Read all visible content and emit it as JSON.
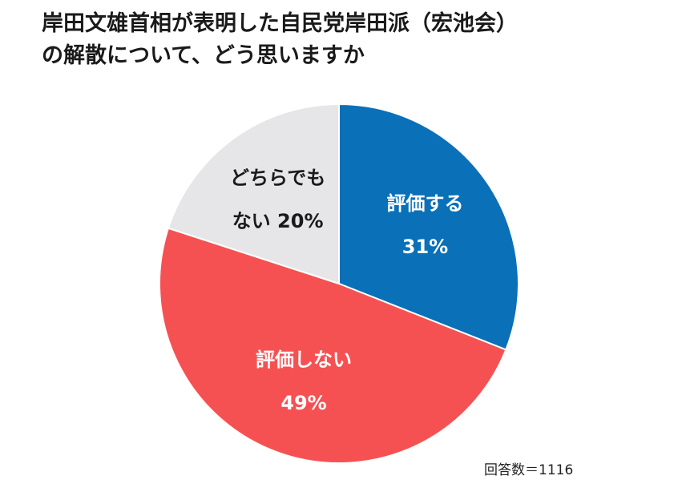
{
  "chart_data": {
    "type": "pie",
    "title_lines": [
      "岸田文雄首相が表明した自民党岸田派（宏池会）",
      "の解散について、どう思いますか"
    ],
    "slices": [
      {
        "label_lines": [
          "評価する"
        ],
        "percent_text": "31%",
        "value": 31,
        "color": "#0a70b8",
        "text_color": "#ffffff"
      },
      {
        "label_lines": [
          "評価しない"
        ],
        "percent_text": "49%",
        "value": 49,
        "color": "#f65152",
        "text_color": "#ffffff"
      },
      {
        "label_lines": [
          "どちらでも",
          "ない 20%"
        ],
        "percent_text": "",
        "value": 20,
        "color": "#e6e6e9",
        "text_color": "#1a1a1a"
      }
    ],
    "note": "回答数＝1116",
    "start_angle_deg": 0,
    "direction": "clockwise"
  }
}
